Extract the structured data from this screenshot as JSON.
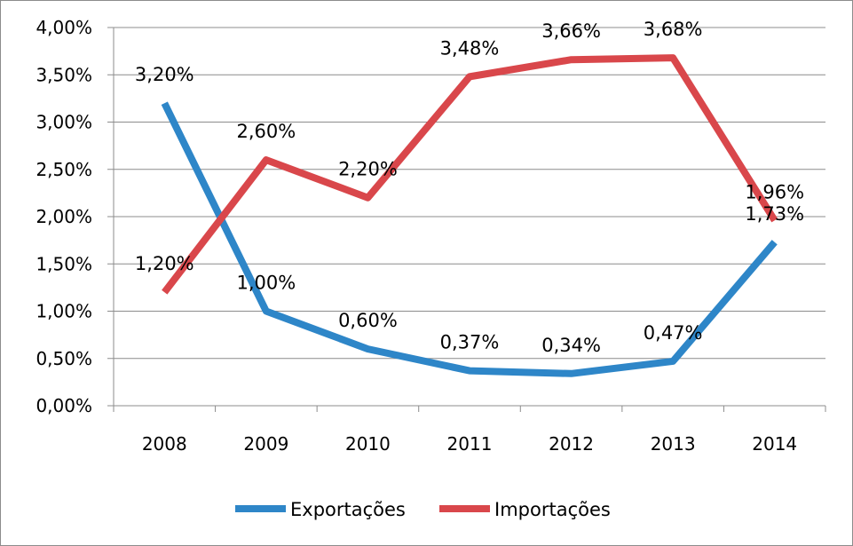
{
  "chart_data": {
    "type": "line",
    "title": "",
    "xlabel": "",
    "ylabel": "",
    "categories": [
      "2008",
      "2009",
      "2010",
      "2011",
      "2012",
      "2013",
      "2014"
    ],
    "ylim": [
      0,
      4
    ],
    "ytick_step": 0.5,
    "ytick_labels": [
      "0,00%",
      "0,50%",
      "1,00%",
      "1,50%",
      "2,00%",
      "2,50%",
      "3,00%",
      "3,50%",
      "4,00%"
    ],
    "grid": true,
    "legend_position": "bottom",
    "series": [
      {
        "name": "Exportações",
        "color": "#2e86c8",
        "values": [
          3.2,
          1.0,
          0.6,
          0.37,
          0.34,
          0.47,
          1.73
        ],
        "labels": [
          "3,20%",
          "1,00%",
          "0,60%",
          "0,37%",
          "0,34%",
          "0,47%",
          "1,73%"
        ]
      },
      {
        "name": "Importações",
        "color": "#d9474b",
        "values": [
          1.2,
          2.6,
          2.2,
          3.48,
          3.66,
          3.68,
          1.96
        ],
        "labels": [
          "1,20%",
          "2,60%",
          "2,20%",
          "3,48%",
          "3,66%",
          "3,68%",
          "1,96%"
        ]
      }
    ]
  }
}
